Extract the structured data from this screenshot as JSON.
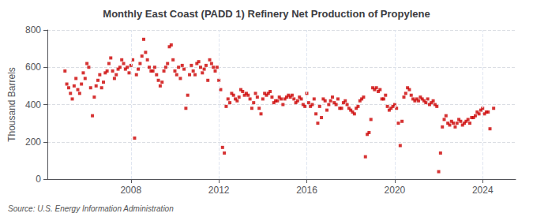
{
  "chart_data": {
    "type": "scatter",
    "title": "Monthly East Coast (PADD 1) Refinery Net Production of Propylene",
    "ylabel": "Thousand Barrels",
    "source": "Source: U.S. Energy Information Administration",
    "color": "#cc0000",
    "marker": "square",
    "grid": true,
    "ylim": [
      0,
      800
    ],
    "yticks": [
      0,
      200,
      400,
      600,
      800
    ],
    "xlim": [
      2004.2,
      2025.5
    ],
    "xticks": [
      2008,
      2012,
      2016,
      2020,
      2024
    ],
    "x": [
      2005.0,
      2005.083,
      2005.167,
      2005.25,
      2005.333,
      2005.417,
      2005.5,
      2005.583,
      2005.667,
      2005.75,
      2005.833,
      2005.917,
      2006.0,
      2006.083,
      2006.167,
      2006.25,
      2006.333,
      2006.417,
      2006.5,
      2006.583,
      2006.667,
      2006.75,
      2006.833,
      2006.917,
      2007.0,
      2007.083,
      2007.167,
      2007.25,
      2007.333,
      2007.417,
      2007.5,
      2007.583,
      2007.667,
      2007.75,
      2007.833,
      2007.917,
      2008.0,
      2008.083,
      2008.167,
      2008.25,
      2008.333,
      2008.417,
      2008.5,
      2008.583,
      2008.667,
      2008.75,
      2008.833,
      2008.917,
      2009.0,
      2009.083,
      2009.167,
      2009.25,
      2009.333,
      2009.417,
      2009.5,
      2009.583,
      2009.667,
      2009.75,
      2009.833,
      2009.917,
      2010.0,
      2010.083,
      2010.167,
      2010.25,
      2010.333,
      2010.417,
      2010.5,
      2010.583,
      2010.667,
      2010.75,
      2010.833,
      2010.917,
      2011.0,
      2011.083,
      2011.167,
      2011.25,
      2011.333,
      2011.417,
      2011.5,
      2011.583,
      2011.667,
      2011.75,
      2011.833,
      2011.917,
      2012.0,
      2012.083,
      2012.167,
      2012.25,
      2012.333,
      2012.417,
      2012.5,
      2012.583,
      2012.667,
      2012.75,
      2012.833,
      2012.917,
      2013.0,
      2013.083,
      2013.167,
      2013.25,
      2013.333,
      2013.417,
      2013.5,
      2013.583,
      2013.667,
      2013.75,
      2013.833,
      2013.917,
      2014.0,
      2014.083,
      2014.167,
      2014.25,
      2014.333,
      2014.417,
      2014.5,
      2014.583,
      2014.667,
      2014.75,
      2014.833,
      2014.917,
      2015.0,
      2015.083,
      2015.167,
      2015.25,
      2015.333,
      2015.417,
      2015.5,
      2015.583,
      2015.667,
      2015.75,
      2015.833,
      2015.917,
      2016.0,
      2016.083,
      2016.167,
      2016.25,
      2016.333,
      2016.417,
      2016.5,
      2016.583,
      2016.667,
      2016.75,
      2016.833,
      2016.917,
      2017.0,
      2017.083,
      2017.167,
      2017.25,
      2017.333,
      2017.417,
      2017.5,
      2017.583,
      2017.667,
      2017.75,
      2017.833,
      2017.917,
      2018.0,
      2018.083,
      2018.167,
      2018.25,
      2018.333,
      2018.417,
      2018.5,
      2018.583,
      2018.667,
      2018.75,
      2018.833,
      2018.917,
      2019.0,
      2019.083,
      2019.167,
      2019.25,
      2019.333,
      2019.417,
      2019.5,
      2019.583,
      2019.667,
      2019.75,
      2019.833,
      2019.917,
      2020.0,
      2020.083,
      2020.167,
      2020.25,
      2020.333,
      2020.417,
      2020.5,
      2020.583,
      2020.667,
      2020.75,
      2020.833,
      2020.917,
      2021.0,
      2021.083,
      2021.167,
      2021.25,
      2021.333,
      2021.417,
      2021.5,
      2021.583,
      2021.667,
      2021.75,
      2021.833,
      2021.917,
      2022.0,
      2022.083,
      2022.167,
      2022.25,
      2022.333,
      2022.417,
      2022.5,
      2022.583,
      2022.667,
      2022.75,
      2022.833,
      2022.917,
      2023.0,
      2023.083,
      2023.167,
      2023.25,
      2023.333,
      2023.417,
      2023.5,
      2023.583,
      2023.667,
      2023.75,
      2023.833,
      2023.917,
      2024.0,
      2024.083,
      2024.167,
      2024.25,
      2024.333,
      2024.5
    ],
    "values": [
      580,
      510,
      490,
      460,
      430,
      500,
      540,
      480,
      460,
      510,
      570,
      540,
      620,
      600,
      490,
      340,
      440,
      500,
      530,
      560,
      490,
      520,
      570,
      580,
      620,
      650,
      580,
      540,
      560,
      590,
      600,
      640,
      620,
      590,
      600,
      570,
      610,
      640,
      220,
      560,
      590,
      620,
      660,
      750,
      680,
      640,
      600,
      580,
      580,
      600,
      560,
      530,
      500,
      520,
      580,
      600,
      620,
      710,
      720,
      640,
      580,
      560,
      600,
      540,
      610,
      590,
      380,
      450,
      560,
      610,
      580,
      560,
      620,
      630,
      600,
      570,
      590,
      610,
      530,
      640,
      620,
      600,
      580,
      600,
      530,
      480,
      170,
      140,
      390,
      430,
      410,
      460,
      450,
      430,
      420,
      440,
      480,
      470,
      450,
      460,
      450,
      430,
      380,
      410,
      460,
      440,
      380,
      350,
      430,
      460,
      450,
      460,
      470,
      440,
      410,
      420,
      420,
      440,
      430,
      400,
      430,
      440,
      450,
      440,
      450,
      430,
      410,
      420,
      440,
      430,
      400,
      390,
      460,
      410,
      390,
      400,
      430,
      350,
      300,
      390,
      330,
      430,
      420,
      370,
      400,
      420,
      440,
      410,
      400,
      430,
      380,
      380,
      410,
      420,
      400,
      380,
      370,
      360,
      350,
      380,
      390,
      420,
      430,
      440,
      120,
      240,
      250,
      320,
      490,
      480,
      490,
      470,
      480,
      430,
      430,
      450,
      390,
      370,
      380,
      390,
      400,
      380,
      300,
      180,
      310,
      440,
      460,
      490,
      480,
      450,
      430,
      420,
      430,
      420,
      440,
      430,
      420,
      410,
      430,
      400,
      410,
      420,
      400,
      390,
      40,
      140,
      280,
      320,
      340,
      300,
      290,
      310,
      300,
      280,
      300,
      320,
      310,
      290,
      300,
      310,
      320,
      300,
      330,
      330,
      340,
      360,
      350,
      370,
      380,
      350,
      360,
      360,
      270,
      380
    ]
  }
}
